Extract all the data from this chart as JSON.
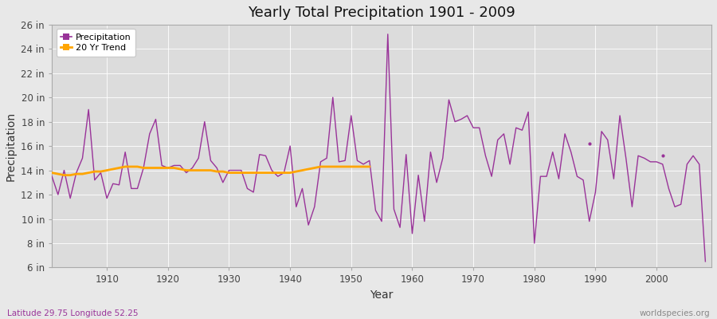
{
  "title": "Yearly Total Precipitation 1901 - 2009",
  "xlabel": "Year",
  "ylabel": "Precipitation",
  "subtitle": "Latitude 29.75 Longitude 52.25",
  "watermark": "worldspecies.org",
  "precip_color": "#993399",
  "trend_color": "#FFA500",
  "bg_outer": "#E8E8E8",
  "bg_plot": "#DCDCDC",
  "ylim": [
    6,
    26
  ],
  "yticks": [
    6,
    8,
    10,
    12,
    14,
    16,
    18,
    20,
    22,
    24,
    26
  ],
  "ytick_labels": [
    "6 in",
    "8 in",
    "10 in",
    "12 in",
    "14 in",
    "16 in",
    "18 in",
    "20 in",
    "22 in",
    "24 in",
    "26 in"
  ],
  "xticks": [
    1910,
    1920,
    1930,
    1940,
    1950,
    1960,
    1970,
    1980,
    1990,
    2000
  ],
  "years": [
    1901,
    1902,
    1903,
    1904,
    1905,
    1906,
    1907,
    1908,
    1909,
    1910,
    1911,
    1912,
    1913,
    1914,
    1915,
    1916,
    1917,
    1918,
    1919,
    1920,
    1921,
    1922,
    1923,
    1924,
    1925,
    1926,
    1927,
    1928,
    1929,
    1930,
    1931,
    1932,
    1933,
    1934,
    1935,
    1936,
    1937,
    1938,
    1939,
    1940,
    1941,
    1942,
    1943,
    1944,
    1945,
    1946,
    1947,
    1948,
    1949,
    1950,
    1951,
    1952,
    1953,
    1954,
    1955,
    1956,
    1957,
    1958,
    1959,
    1960,
    1961,
    1962,
    1963,
    1964,
    1965,
    1966,
    1967,
    1968,
    1969,
    1970,
    1971,
    1972,
    1973,
    1974,
    1975,
    1976,
    1977,
    1978,
    1979,
    1980,
    1981,
    1982,
    1983,
    1984,
    1985,
    1986,
    1987,
    1988,
    1989,
    1990,
    1991,
    1992,
    1993,
    1994,
    1995,
    1996,
    1997,
    1998,
    1999,
    2000,
    2001,
    2002,
    2003,
    2004,
    2005,
    2006,
    2007,
    2008,
    2009
  ],
  "precip": [
    13.5,
    12.0,
    14.0,
    11.7,
    13.8,
    15.0,
    19.0,
    13.2,
    13.8,
    11.7,
    12.9,
    12.8,
    15.5,
    12.5,
    12.5,
    14.2,
    17.0,
    18.2,
    14.4,
    14.2,
    14.4,
    14.4,
    13.8,
    14.2,
    15.0,
    18.0,
    14.8,
    14.2,
    13.0,
    14.0,
    14.0,
    14.0,
    12.5,
    12.2,
    15.3,
    15.2,
    14.0,
    13.5,
    13.8,
    16.0,
    11.0,
    12.5,
    9.5,
    11.0,
    14.7,
    15.0,
    20.0,
    14.7,
    14.8,
    18.5,
    14.8,
    14.5,
    14.8,
    10.7,
    9.8,
    25.2,
    10.8,
    9.3,
    15.3,
    8.8,
    13.6,
    9.8,
    15.5,
    13.0,
    15.0,
    19.8,
    18.0,
    18.2,
    18.5,
    17.5,
    17.5,
    15.2,
    13.5,
    16.5,
    17.0,
    14.5,
    17.5,
    17.3,
    18.8,
    8.0,
    13.5,
    13.5,
    15.5,
    13.3,
    17.0,
    15.5,
    13.5,
    13.2,
    9.8,
    12.2,
    17.2,
    16.5,
    13.3,
    18.5,
    15.0,
    11.0,
    15.2,
    15.0,
    14.7,
    14.7,
    14.5,
    12.5,
    11.0,
    11.2,
    14.5,
    15.2,
    14.5,
    6.5,
    null
  ],
  "trend_years": [
    1901,
    1902,
    1903,
    1904,
    1905,
    1906,
    1907,
    1908,
    1909,
    1910,
    1911,
    1912,
    1913,
    1914,
    1915,
    1916,
    1917,
    1918,
    1919,
    1920,
    1921,
    1922,
    1923,
    1924,
    1925,
    1926,
    1927,
    1928,
    1929,
    1930,
    1931,
    1932,
    1933,
    1934,
    1935,
    1936,
    1937,
    1938,
    1939,
    1940,
    1941,
    1942,
    1943,
    1944,
    1945,
    1946,
    1947,
    1948,
    1949,
    1950,
    1951,
    1952,
    1953
  ],
  "trend_vals": [
    13.8,
    13.7,
    13.6,
    13.6,
    13.7,
    13.7,
    13.8,
    13.9,
    13.9,
    14.0,
    14.1,
    14.2,
    14.3,
    14.3,
    14.3,
    14.2,
    14.2,
    14.2,
    14.2,
    14.2,
    14.2,
    14.1,
    14.0,
    14.0,
    14.0,
    14.0,
    14.0,
    13.9,
    13.9,
    13.8,
    13.8,
    13.8,
    13.8,
    13.8,
    13.8,
    13.8,
    13.8,
    13.8,
    13.8,
    13.8,
    13.9,
    14.0,
    14.1,
    14.2,
    14.3,
    14.3,
    14.3,
    14.3,
    14.3,
    14.3,
    14.3,
    14.3,
    14.3
  ],
  "isolated_dots": [
    {
      "year": 1989,
      "val": 16.2
    },
    {
      "year": 2001,
      "val": 15.2
    }
  ]
}
